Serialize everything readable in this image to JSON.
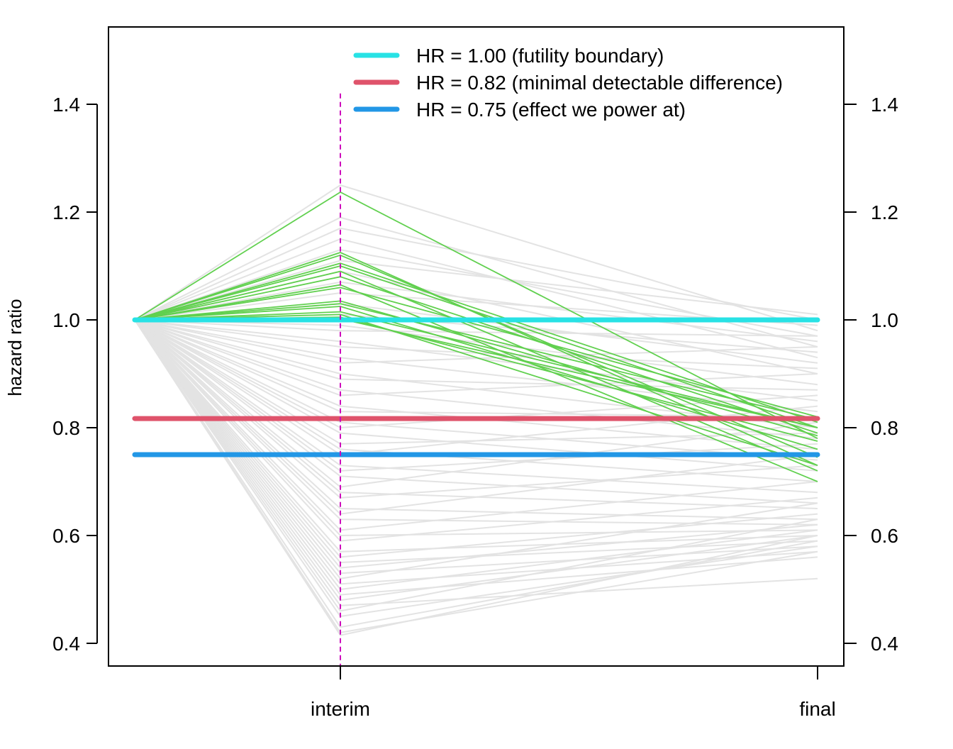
{
  "chart_data": {
    "type": "line",
    "title": "",
    "xlabel": "",
    "ylabel": "hazard ratio",
    "ylim": [
      0.36,
      1.55
    ],
    "x_categories": [
      "interim",
      "final"
    ],
    "x_start_value": 1.0,
    "yticks": [
      "0.4",
      "0.6",
      "0.8",
      "1.0",
      "1.2",
      "1.4"
    ],
    "y_right_ticks": true,
    "interim_marker": {
      "at": "interim",
      "color": "#CD0BBC",
      "style": "dashed",
      "ymax": 1.42
    },
    "reference_lines": [
      {
        "label": "HR = 1.00 (futility boundary)",
        "value": 1.0,
        "color": "#28E2E5"
      },
      {
        "label": "HR = 0.82 (minimal detectable difference)",
        "value": 0.817,
        "color": "#DF536B"
      },
      {
        "label": "HR = 0.75 (effect we power at)",
        "value": 0.75,
        "color": "#2297E6"
      }
    ],
    "legend_position": "top-right",
    "highlighted_color": "#61D04F",
    "background_color": "#E3E3E3",
    "highlighted_trials": [
      {
        "interim": 1.237,
        "final": 0.78
      },
      {
        "interim": 1.125,
        "final": 0.73
      },
      {
        "interim": 1.12,
        "final": 0.745
      },
      {
        "interim": 1.105,
        "final": 0.81
      },
      {
        "interim": 1.1,
        "final": 0.8
      },
      {
        "interim": 1.09,
        "final": 0.72
      },
      {
        "interim": 1.08,
        "final": 0.79
      },
      {
        "interim": 1.065,
        "final": 0.7
      },
      {
        "interim": 1.06,
        "final": 0.82
      },
      {
        "interim": 1.035,
        "final": 0.785
      },
      {
        "interim": 1.03,
        "final": 0.815
      },
      {
        "interim": 1.025,
        "final": 0.76
      },
      {
        "interim": 1.015,
        "final": 0.8
      },
      {
        "interim": 1.01,
        "final": 0.73
      },
      {
        "interim": 1.005,
        "final": 0.775
      },
      {
        "interim": 1.002,
        "final": 0.8
      }
    ],
    "background_trials": [
      {
        "interim": 1.25,
        "final": 0.98
      },
      {
        "interim": 1.19,
        "final": 0.95
      },
      {
        "interim": 1.17,
        "final": 1.0
      },
      {
        "interim": 1.15,
        "final": 0.93
      },
      {
        "interim": 1.13,
        "final": 0.97
      },
      {
        "interim": 1.11,
        "final": 1.01
      },
      {
        "interim": 1.09,
        "final": 0.9
      },
      {
        "interim": 1.07,
        "final": 0.96
      },
      {
        "interim": 1.05,
        "final": 0.99
      },
      {
        "interim": 1.03,
        "final": 0.92
      },
      {
        "interim": 1.01,
        "final": 0.94
      },
      {
        "interim": 0.99,
        "final": 0.88
      },
      {
        "interim": 0.98,
        "final": 0.97
      },
      {
        "interim": 0.96,
        "final": 0.85
      },
      {
        "interim": 0.95,
        "final": 0.91
      },
      {
        "interim": 0.93,
        "final": 0.83
      },
      {
        "interim": 0.92,
        "final": 0.95
      },
      {
        "interim": 0.9,
        "final": 0.8
      },
      {
        "interim": 0.89,
        "final": 0.87
      },
      {
        "interim": 0.87,
        "final": 0.78
      },
      {
        "interim": 0.86,
        "final": 0.9
      },
      {
        "interim": 0.84,
        "final": 0.76
      },
      {
        "interim": 0.83,
        "final": 0.82
      },
      {
        "interim": 0.81,
        "final": 0.74
      },
      {
        "interim": 0.8,
        "final": 0.86
      },
      {
        "interim": 0.79,
        "final": 0.72
      },
      {
        "interim": 0.77,
        "final": 0.79
      },
      {
        "interim": 0.76,
        "final": 0.7
      },
      {
        "interim": 0.75,
        "final": 0.84
      },
      {
        "interim": 0.73,
        "final": 0.68
      },
      {
        "interim": 0.72,
        "final": 0.77
      },
      {
        "interim": 0.71,
        "final": 0.66
      },
      {
        "interim": 0.69,
        "final": 0.81
      },
      {
        "interim": 0.68,
        "final": 0.65
      },
      {
        "interim": 0.67,
        "final": 0.73
      },
      {
        "interim": 0.65,
        "final": 0.63
      },
      {
        "interim": 0.64,
        "final": 0.75
      },
      {
        "interim": 0.63,
        "final": 0.62
      },
      {
        "interim": 0.61,
        "final": 0.7
      },
      {
        "interim": 0.6,
        "final": 0.61
      },
      {
        "interim": 0.59,
        "final": 0.67
      },
      {
        "interim": 0.57,
        "final": 0.6
      },
      {
        "interim": 0.56,
        "final": 0.64
      },
      {
        "interim": 0.55,
        "final": 0.59
      },
      {
        "interim": 0.54,
        "final": 0.62
      },
      {
        "interim": 0.53,
        "final": 0.58
      },
      {
        "interim": 0.52,
        "final": 0.66
      },
      {
        "interim": 0.51,
        "final": 0.57
      },
      {
        "interim": 0.5,
        "final": 0.61
      },
      {
        "interim": 0.49,
        "final": 0.56
      },
      {
        "interim": 0.48,
        "final": 0.6
      },
      {
        "interim": 0.47,
        "final": 0.52
      },
      {
        "interim": 0.46,
        "final": 0.63
      },
      {
        "interim": 0.45,
        "final": 0.58
      },
      {
        "interim": 0.43,
        "final": 0.59
      },
      {
        "interim": 0.42,
        "final": 0.57
      },
      {
        "interim": 0.415,
        "final": 0.6
      }
    ]
  }
}
